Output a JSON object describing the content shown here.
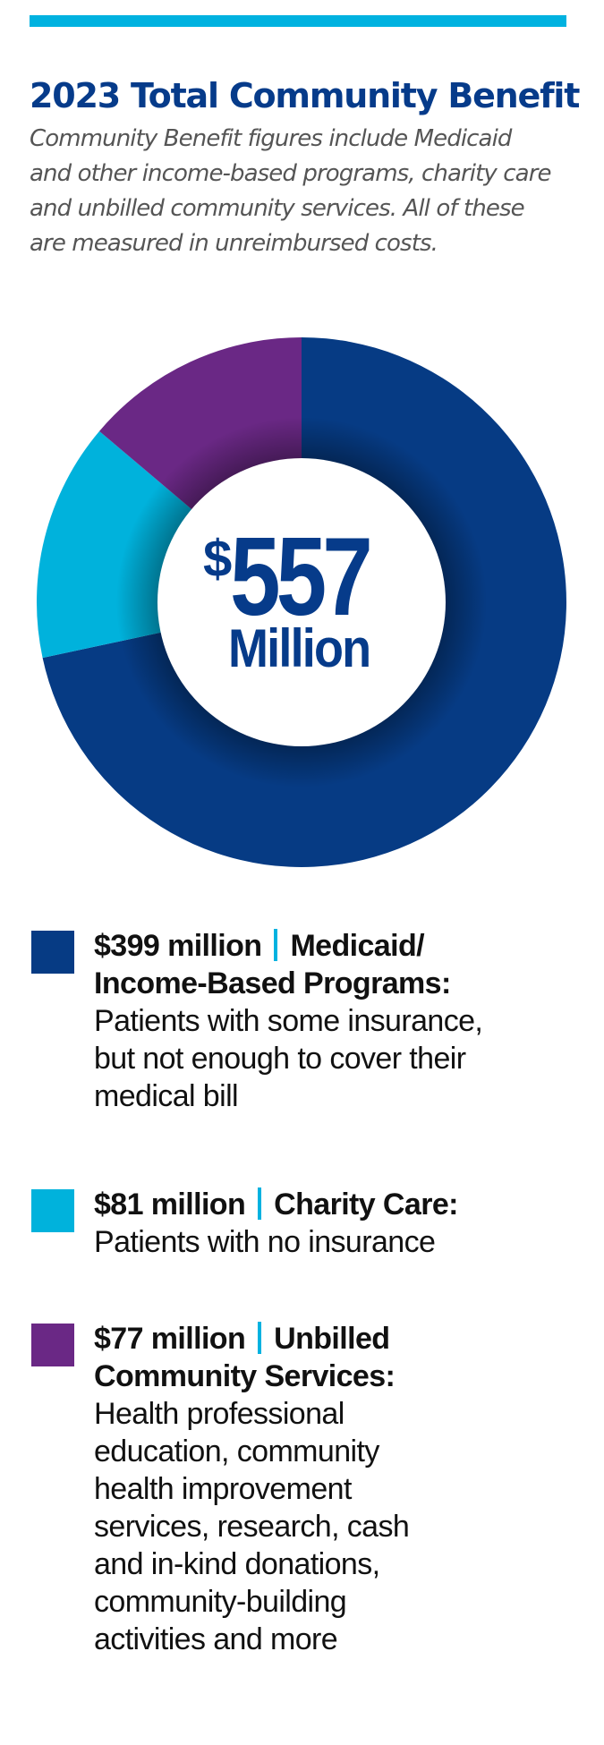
{
  "header": {
    "title": "2023 Total Community Benefit",
    "subtitle_lines": [
      "Community Benefit figures include Medicaid",
      "and other income-based programs, charity care",
      "and unbilled community services. All of these",
      "are measured in unreimbursed costs."
    ],
    "accent_rule_color": "#00b2e0"
  },
  "center": {
    "currency": "$",
    "amount": "557",
    "unit": "Million"
  },
  "legend": [
    {
      "amount": "$399 million",
      "category_lines": [
        "Medicaid/",
        "Income-Based Programs:"
      ],
      "description_lines": [
        "Patients with some insurance,",
        "but not enough to cover their",
        "medical bill"
      ],
      "color": "#063b84"
    },
    {
      "amount": "$81 million",
      "category_lines": [
        "Charity Care:"
      ],
      "description_lines": [
        "Patients with no insurance"
      ],
      "color": "#00b2dc"
    },
    {
      "amount": "$77 million",
      "category_lines": [
        "Unbilled",
        "Community Services:"
      ],
      "description_lines": [
        "Health professional",
        "education, community",
        "health improvement",
        "services, research, cash",
        "and in-kind donations,",
        "community-building",
        "activities and more"
      ],
      "color": "#6a2885"
    }
  ],
  "chart_data": {
    "type": "pie",
    "variant": "donut",
    "title": "2023 Total Community Benefit",
    "center_label": "$557 Million",
    "total": 557,
    "unit": "million USD",
    "categories": [
      "Medicaid/Income-Based Programs",
      "Charity Care",
      "Unbilled Community Services"
    ],
    "values": [
      399,
      81,
      77
    ],
    "colors": [
      "#063b84",
      "#00b2dc",
      "#6a2885"
    ],
    "start_angle_deg": 0,
    "direction": "clockwise",
    "legend_position": "bottom"
  }
}
